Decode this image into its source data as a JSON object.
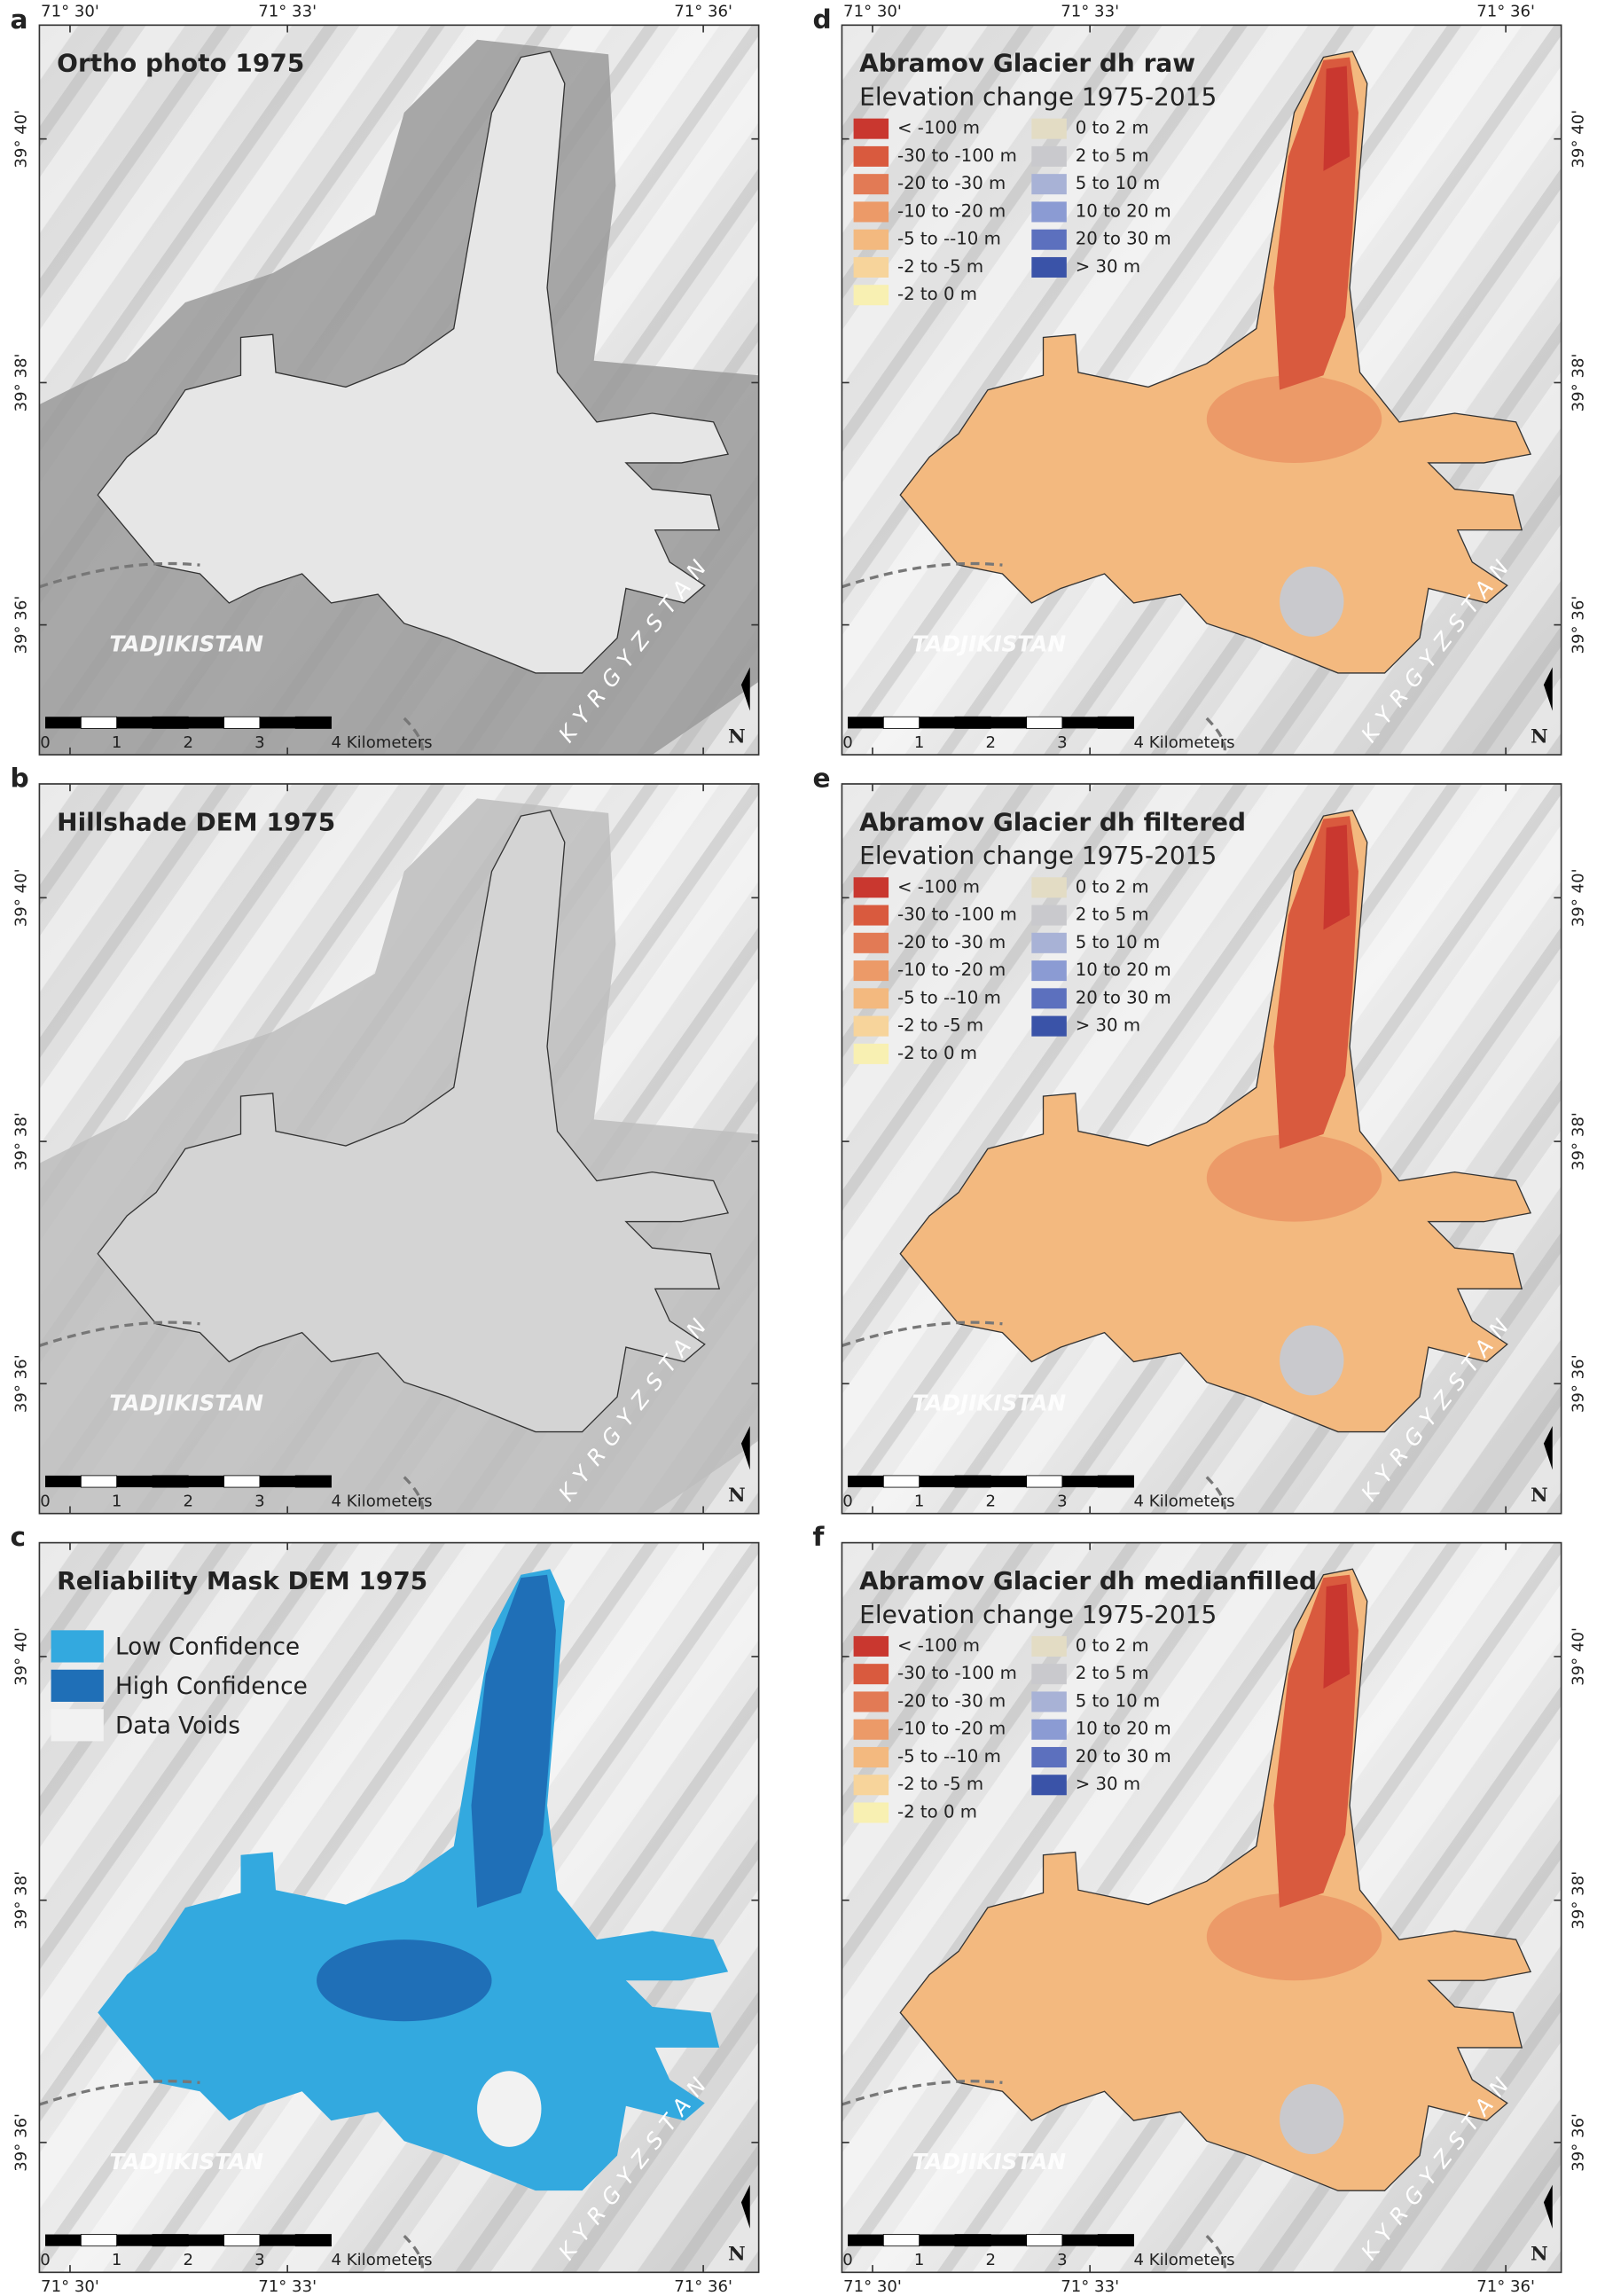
{
  "longitude_labels": [
    "71° 30'",
    "71° 33'",
    "71° 36'"
  ],
  "latitude_labels": [
    "39° 40'",
    "39° 38'",
    "39° 36'"
  ],
  "scale_bar": [
    "0",
    "1",
    "2",
    "3",
    "4 Kilometers"
  ],
  "north_label": "N",
  "country_labels": [
    "TADJIKISTAN",
    "KYRGYZSTAN"
  ],
  "panels": [
    {
      "letter": "a",
      "type": "ortho",
      "title": "Ortho photo 1975"
    },
    {
      "letter": "b",
      "type": "hillshade",
      "title": "Hillshade DEM 1975"
    },
    {
      "letter": "c",
      "type": "mask",
      "title": "Reliability Mask DEM 1975",
      "legend": [
        {
          "label": "Low Confidence",
          "color": "#33a9df"
        },
        {
          "label": "High Confidence",
          "color": "#1f6fb7"
        },
        {
          "label": "Data Voids",
          "color": "#f2f2f2"
        }
      ]
    },
    {
      "letter": "d",
      "type": "dh",
      "title": "Abramov Glacier dh raw",
      "subtitle": "Elevation change 1975-2015"
    },
    {
      "letter": "e",
      "type": "dh",
      "title": "Abramov Glacier dh filtered",
      "subtitle": "Elevation change 1975-2015"
    },
    {
      "letter": "f",
      "type": "dh",
      "title": "Abramov Glacier dh medianfilled",
      "subtitle": "Elevation change 1975-2015"
    }
  ],
  "dh_legend": [
    {
      "label": "< -100 m",
      "color": "#c9372f"
    },
    {
      "label": "-30 to -100 m",
      "color": "#d95a3e"
    },
    {
      "label": "-20 to -30 m",
      "color": "#e27a55"
    },
    {
      "label": "-10 to -20 m",
      "color": "#ec9a68"
    },
    {
      "label": "-5 to --10 m",
      "color": "#f3b97f"
    },
    {
      "label": "-2 to -5 m",
      "color": "#f7d49b"
    },
    {
      "label": "-2 to 0 m",
      "color": "#f8f0b2"
    },
    {
      "label": "0 to 2 m",
      "color": "#e3dcc4"
    },
    {
      "label": "2 to 5 m",
      "color": "#c9c9cd"
    },
    {
      "label": "5 to 10 m",
      "color": "#a8b2d6"
    },
    {
      "label": "10 to 20 m",
      "color": "#8b9bd3"
    },
    {
      "label": "20 to 30 m",
      "color": "#5c70be"
    },
    {
      "label": "> 30 m",
      "color": "#3a53a8"
    }
  ]
}
